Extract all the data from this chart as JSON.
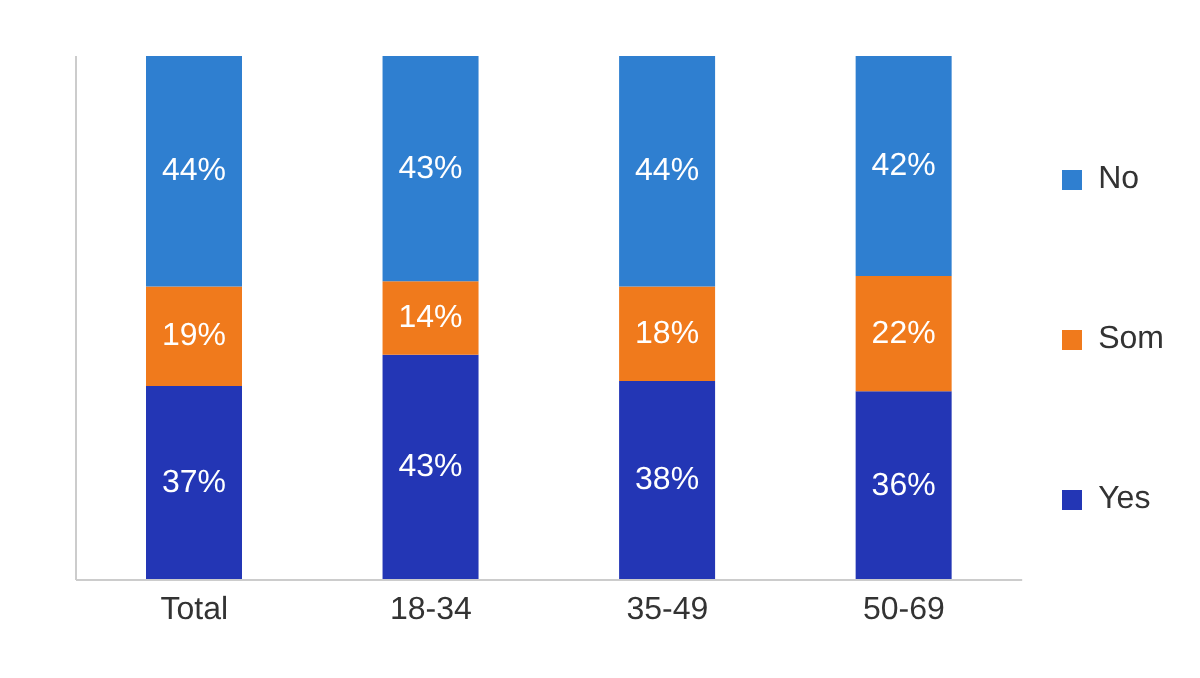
{
  "chart_data": {
    "type": "bar",
    "stacked": true,
    "categories": [
      "Total",
      "18-34",
      "35-49",
      "50-69"
    ],
    "series": [
      {
        "name": "Yes",
        "color": "#2336b5",
        "values": [
          37,
          43,
          38,
          36
        ],
        "value_labels": [
          "37%",
          "43%",
          "38%",
          "36%"
        ]
      },
      {
        "name": "Som",
        "color": "#f07a1c",
        "values": [
          19,
          14,
          18,
          22
        ],
        "value_labels": [
          "19%",
          "14%",
          "18%",
          "22%"
        ]
      },
      {
        "name": "No",
        "color": "#2f7fd0",
        "values": [
          44,
          43,
          44,
          42
        ],
        "value_labels": [
          "44%",
          "43%",
          "44%",
          "42%"
        ]
      }
    ],
    "tick_labels": "x",
    "legend": "right"
  }
}
